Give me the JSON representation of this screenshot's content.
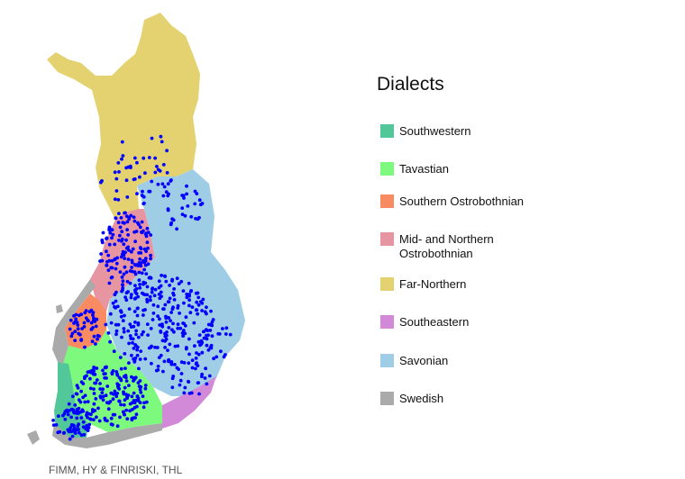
{
  "legend": {
    "title": "Dialects",
    "items": [
      {
        "label": "Southwestern",
        "color": "#52c79a"
      },
      {
        "label": "Tavastian",
        "color": "#7dfa7d"
      },
      {
        "label": "Southern Ostrobothnian",
        "color": "#f98b62"
      },
      {
        "label": "Mid- and Northern Ostrobothnian",
        "color": "#e895a2"
      },
      {
        "label": "Far-Northern",
        "color": "#e4d170"
      },
      {
        "label": "Southeastern",
        "color": "#d28ad8"
      },
      {
        "label": "Savonian",
        "color": "#9fcde6"
      },
      {
        "label": "Swedish",
        "color": "#aaaaaa"
      }
    ]
  },
  "credit": "FIMM, HY & FINRISKI, THL",
  "marker_color": "#0000ff"
}
